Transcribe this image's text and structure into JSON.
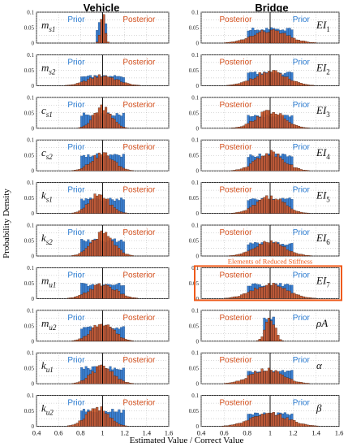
{
  "figure": {
    "column_titles": [
      "Vehicle",
      "Bridge"
    ],
    "xlabel": "Estimated Value / Correct Value",
    "ylabel": "Probability Density",
    "highlight_label": "Elements of Reduced Stiffness",
    "legend_prior": "Prior",
    "legend_posterior": "Posterior"
  },
  "colors": {
    "prior": "#3b7fd0",
    "posterior": "#c8562a",
    "prior_text": "#2a7bd1",
    "posterior_text": "#d4511f",
    "highlight": "#ef5a1a",
    "reference_line": "#000000"
  },
  "chart_data": {
    "type": "bar",
    "xlim": [
      0.4,
      1.6
    ],
    "xticks": [
      "0.4",
      "0.6",
      "0.8",
      "1",
      "1.2",
      "1.4",
      "1.6"
    ],
    "ylim": [
      0,
      0.1
    ],
    "yticks": [
      "0",
      "0.05",
      "0.1"
    ],
    "reference_x": 1.0,
    "grid": true,
    "bin_width": 0.02,
    "panels": [
      {
        "column": "Vehicle",
        "label_base": "m",
        "label_sub": "s1",
        "prior": {
          "lo": 0.95,
          "hi": 1.05,
          "mid": 1.0,
          "height": 0.095,
          "shape": "peak"
        },
        "posterior": {
          "center": 1.0,
          "sigma": 0.02,
          "peak": 0.09
        }
      },
      {
        "column": "Vehicle",
        "label_base": "m",
        "label_sub": "s2",
        "prior": {
          "lo": 0.8,
          "hi": 1.2,
          "mid": 1.0,
          "height": 0.03,
          "shape": "flat"
        },
        "posterior": {
          "center": 1.0,
          "sigma": 0.13,
          "peak": 0.032
        }
      },
      {
        "column": "Vehicle",
        "label_base": "c",
        "label_sub": "s1",
        "prior": {
          "lo": 0.8,
          "hi": 1.2,
          "mid": 1.0,
          "height": 0.045,
          "shape": "flat"
        },
        "posterior": {
          "center": 1.0,
          "sigma": 0.08,
          "peak": 0.07
        }
      },
      {
        "column": "Vehicle",
        "label_base": "c",
        "label_sub": "s2",
        "prior": {
          "lo": 0.8,
          "hi": 1.2,
          "mid": 1.0,
          "height": 0.05,
          "shape": "flat"
        },
        "posterior": {
          "center": 1.0,
          "sigma": 0.1,
          "peak": 0.055
        }
      },
      {
        "column": "Vehicle",
        "label_base": "k",
        "label_sub": "s1",
        "prior": {
          "lo": 0.8,
          "hi": 1.2,
          "mid": 1.0,
          "height": 0.045,
          "shape": "flat"
        },
        "posterior": {
          "center": 0.97,
          "sigma": 0.09,
          "peak": 0.06
        }
      },
      {
        "column": "Vehicle",
        "label_base": "k",
        "label_sub": "s2",
        "prior": {
          "lo": 0.8,
          "hi": 1.2,
          "mid": 1.0,
          "height": 0.05,
          "shape": "flat"
        },
        "posterior": {
          "center": 1.0,
          "sigma": 0.1,
          "peak": 0.07
        }
      },
      {
        "column": "Vehicle",
        "label_base": "m",
        "label_sub": "u1",
        "prior": {
          "lo": 0.8,
          "hi": 1.2,
          "mid": 1.0,
          "height": 0.045,
          "shape": "flat"
        },
        "posterior": {
          "center": 1.0,
          "sigma": 0.12,
          "peak": 0.045
        }
      },
      {
        "column": "Vehicle",
        "label_base": "m",
        "label_sub": "u2",
        "prior": {
          "lo": 0.8,
          "hi": 1.2,
          "mid": 1.0,
          "height": 0.045,
          "shape": "flat"
        },
        "posterior": {
          "center": 1.0,
          "sigma": 0.1,
          "peak": 0.06
        }
      },
      {
        "column": "Vehicle",
        "label_base": "k",
        "label_sub": "u1",
        "prior": {
          "lo": 0.8,
          "hi": 1.2,
          "mid": 1.0,
          "height": 0.05,
          "shape": "flat"
        },
        "posterior": {
          "center": 1.0,
          "sigma": 0.1,
          "peak": 0.055
        }
      },
      {
        "column": "Vehicle",
        "label_base": "k",
        "label_sub": "u2",
        "prior": {
          "lo": 0.8,
          "hi": 1.2,
          "mid": 1.0,
          "height": 0.05,
          "shape": "flat"
        },
        "posterior": {
          "center": 0.95,
          "sigma": 0.1,
          "peak": 0.06
        }
      },
      {
        "column": "Bridge",
        "label_base": "EI",
        "label_sub": "1",
        "prior": {
          "lo": 0.8,
          "hi": 1.2,
          "mid": 1.0,
          "height": 0.045,
          "shape": "flat"
        },
        "posterior": {
          "center": 1.0,
          "sigma": 0.15,
          "peak": 0.04
        }
      },
      {
        "column": "Bridge",
        "label_base": "EI",
        "label_sub": "2",
        "prior": {
          "lo": 0.8,
          "hi": 1.2,
          "mid": 1.0,
          "height": 0.04,
          "shape": "flat"
        },
        "posterior": {
          "center": 1.0,
          "sigma": 0.14,
          "peak": 0.045
        }
      },
      {
        "column": "Bridge",
        "label_base": "EI",
        "label_sub": "3",
        "prior": {
          "lo": 0.8,
          "hi": 1.2,
          "mid": 1.0,
          "height": 0.04,
          "shape": "flat"
        },
        "posterior": {
          "center": 1.0,
          "sigma": 0.12,
          "peak": 0.055
        }
      },
      {
        "column": "Bridge",
        "label_base": "EI",
        "label_sub": "4",
        "prior": {
          "lo": 0.8,
          "hi": 1.2,
          "mid": 1.0,
          "height": 0.05,
          "shape": "flat"
        },
        "posterior": {
          "center": 1.0,
          "sigma": 0.12,
          "peak": 0.06
        }
      },
      {
        "column": "Bridge",
        "label_base": "EI",
        "label_sub": "5",
        "prior": {
          "lo": 0.8,
          "hi": 1.2,
          "mid": 1.0,
          "height": 0.045,
          "shape": "flat"
        },
        "posterior": {
          "center": 1.0,
          "sigma": 0.12,
          "peak": 0.055
        }
      },
      {
        "column": "Bridge",
        "label_base": "EI",
        "label_sub": "6",
        "prior": {
          "lo": 0.8,
          "hi": 1.2,
          "mid": 1.0,
          "height": 0.04,
          "shape": "flat"
        },
        "posterior": {
          "center": 1.0,
          "sigma": 0.13,
          "peak": 0.045
        }
      },
      {
        "column": "Bridge",
        "label_base": "EI",
        "label_sub": "7",
        "highlight": true,
        "prior": {
          "lo": 0.8,
          "hi": 1.2,
          "mid": 1.0,
          "height": 0.045,
          "shape": "flat"
        },
        "posterior": {
          "center": 1.0,
          "sigma": 0.15,
          "peak": 0.045
        }
      },
      {
        "column": "Bridge",
        "label_base": "ρA",
        "label_sub": "",
        "prior": {
          "lo": 0.95,
          "hi": 1.05,
          "mid": 1.0,
          "height": 0.07,
          "shape": "flat"
        },
        "posterior": {
          "center": 1.0,
          "sigma": 0.04,
          "peak": 0.08
        }
      },
      {
        "column": "Bridge",
        "label_base": "α",
        "label_sub": "",
        "prior": {
          "lo": 0.8,
          "hi": 1.2,
          "mid": 1.0,
          "height": 0.04,
          "shape": "flat"
        },
        "posterior": {
          "center": 0.97,
          "sigma": 0.14,
          "peak": 0.045
        }
      },
      {
        "column": "Bridge",
        "label_base": "β",
        "label_sub": "",
        "prior": {
          "lo": 0.8,
          "hi": 1.2,
          "mid": 1.0,
          "height": 0.04,
          "shape": "flat"
        },
        "posterior": {
          "center": 1.0,
          "sigma": 0.16,
          "peak": 0.04
        }
      }
    ]
  }
}
